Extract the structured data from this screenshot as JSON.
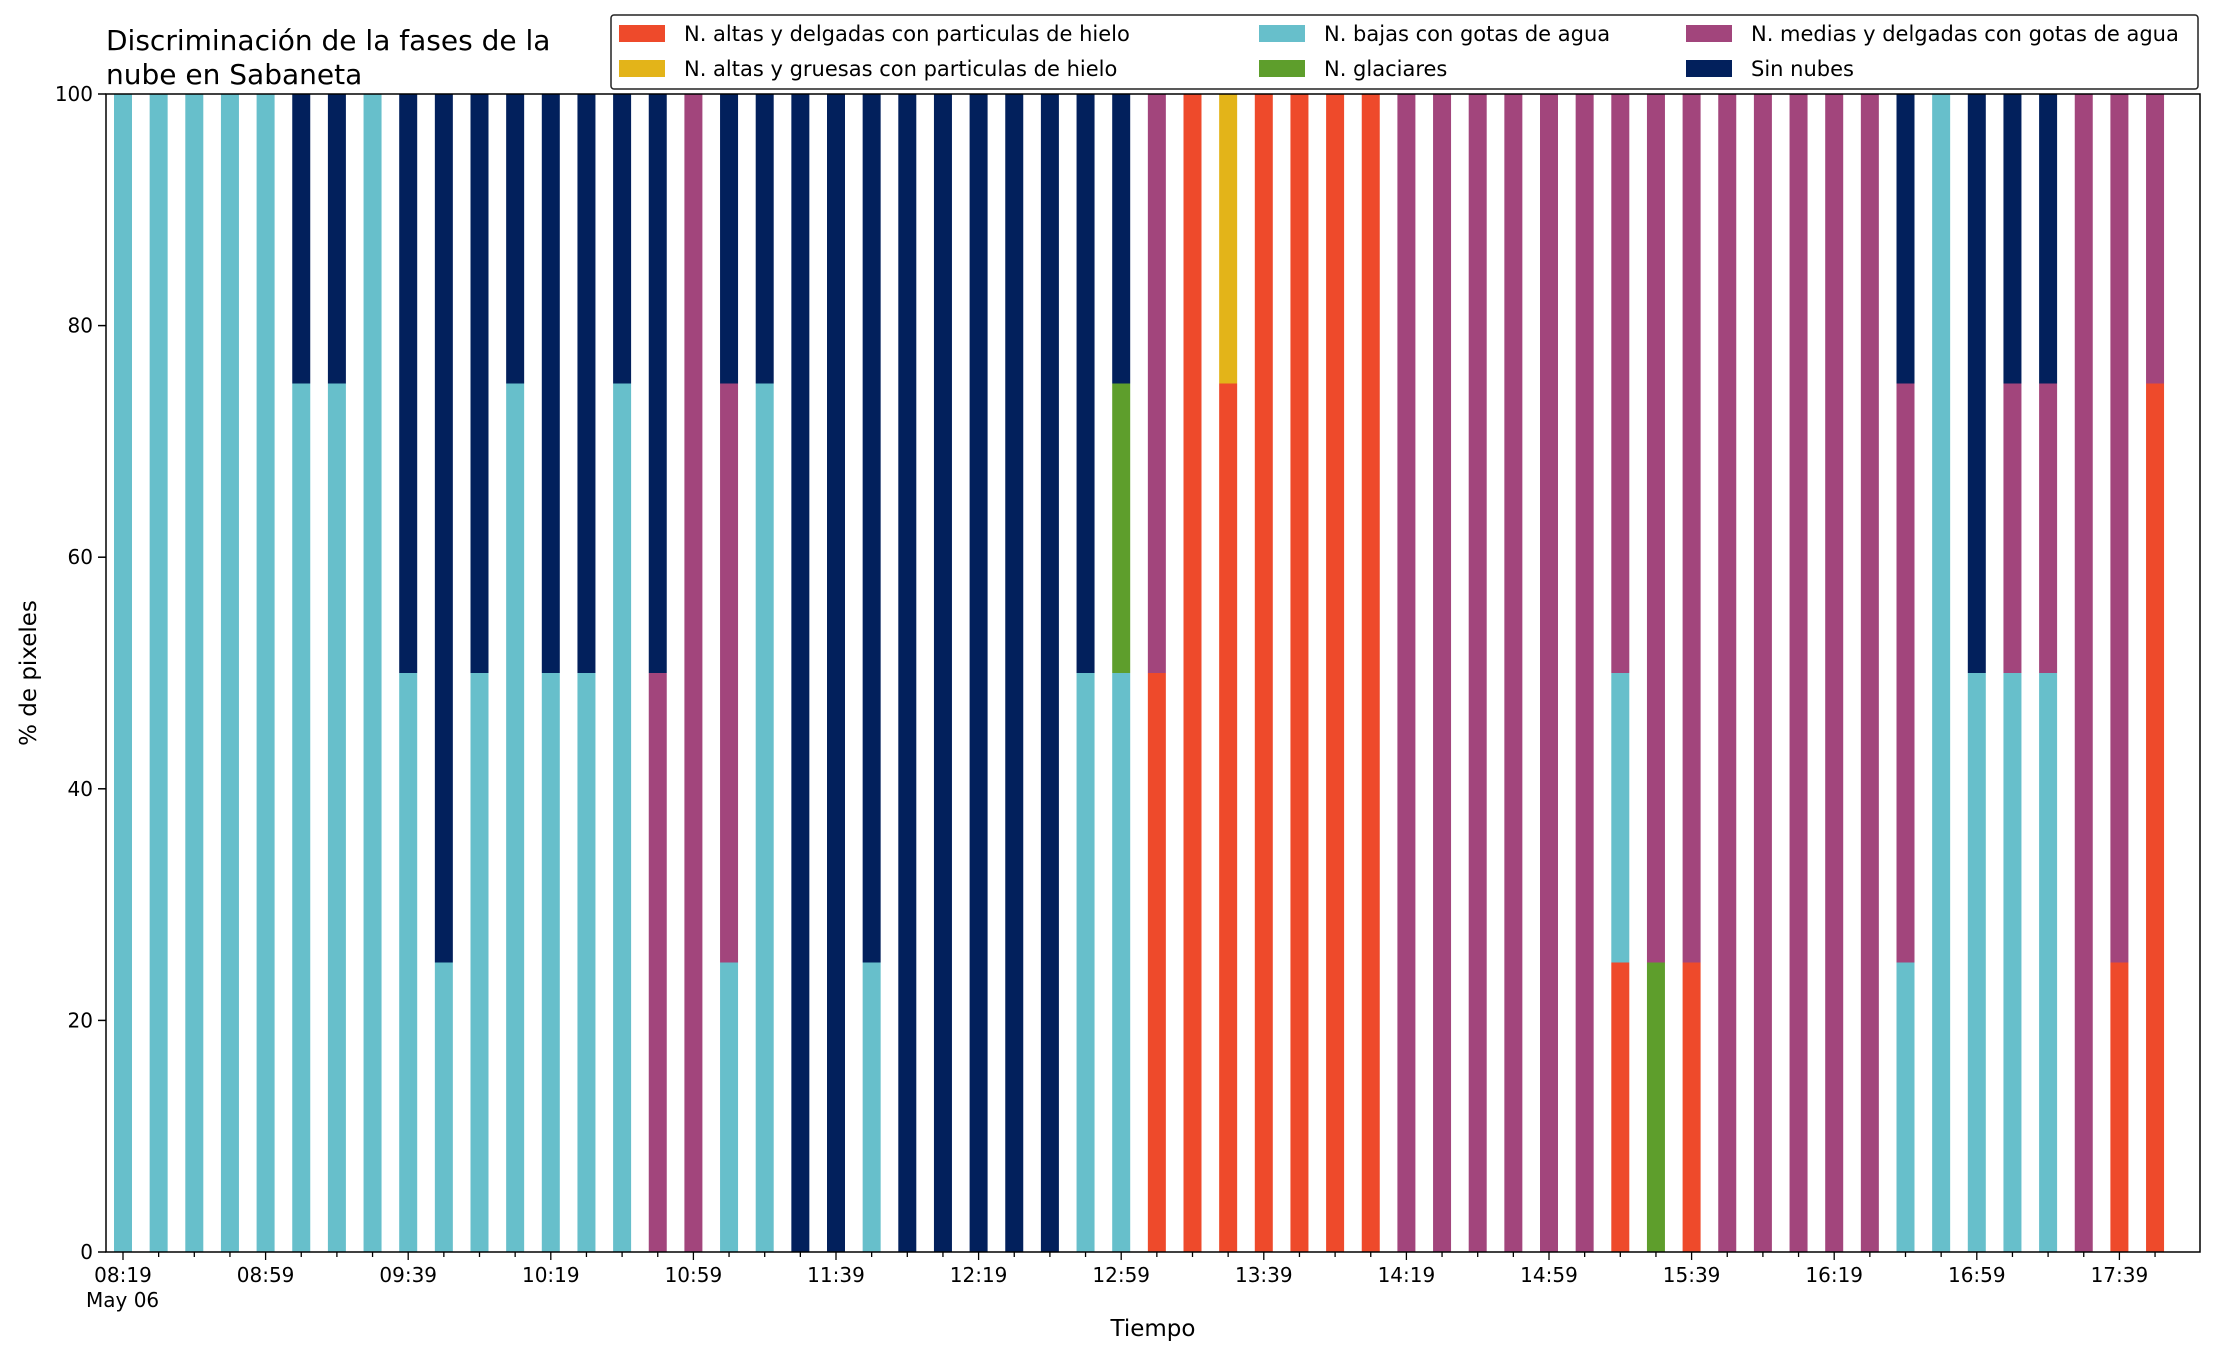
{
  "chart_data": {
    "type": "bar",
    "stacked": true,
    "title": "Discriminación de la fases de la nube en Sabaneta",
    "title_lines": [
      "Discriminación de la fases de la",
      "nube en Sabaneta"
    ],
    "xlabel": "Tiempo",
    "ylabel": "% de pixeles",
    "ylim": [
      0,
      100
    ],
    "yticks": [
      0,
      20,
      40,
      60,
      80,
      100
    ],
    "grid": false,
    "legend_position": "top-right",
    "x_tick_labels": [
      "08:19",
      "08:59",
      "09:39",
      "10:19",
      "10:59",
      "11:39",
      "12:19",
      "12:59",
      "13:39",
      "14:19",
      "14:59",
      "15:39",
      "16:19",
      "16:59",
      "17:39"
    ],
    "x_date_label": "May 06",
    "categories": [
      "08:19",
      "08:29",
      "08:39",
      "08:49",
      "08:59",
      "09:09",
      "09:19",
      "09:29",
      "09:39",
      "09:49",
      "09:59",
      "10:09",
      "10:19",
      "10:29",
      "10:39",
      "10:49",
      "10:59",
      "11:09",
      "11:19",
      "11:29",
      "11:39",
      "11:49",
      "11:59",
      "12:09",
      "12:19",
      "12:29",
      "12:39",
      "12:49",
      "12:59",
      "13:09",
      "13:19",
      "13:29",
      "13:39",
      "13:49",
      "13:59",
      "14:09",
      "14:19",
      "14:29",
      "14:39",
      "14:49",
      "14:59",
      "15:09",
      "15:19",
      "15:29",
      "15:39",
      "15:49",
      "15:59",
      "16:09",
      "16:19",
      "16:29",
      "16:39",
      "16:49",
      "16:59",
      "17:09",
      "17:19",
      "17:29",
      "17:39",
      "17:49"
    ],
    "series": [
      {
        "name": "N. altas y delgadas con particulas de hielo",
        "color": "#ee4a2b",
        "values": [
          0,
          0,
          0,
          0,
          0,
          0,
          0,
          0,
          0,
          0,
          0,
          0,
          0,
          0,
          0,
          0,
          0,
          0,
          0,
          0,
          0,
          0,
          0,
          0,
          0,
          0,
          0,
          0,
          0,
          50,
          100,
          75,
          100,
          100,
          100,
          100,
          0,
          0,
          0,
          0,
          0,
          0,
          25,
          0,
          25,
          0,
          0,
          0,
          0,
          0,
          0,
          0,
          0,
          0,
          0,
          0,
          25,
          75
        ]
      },
      {
        "name": "N. altas y gruesas con particulas de hielo",
        "color": "#e3b419",
        "values": [
          0,
          0,
          0,
          0,
          0,
          0,
          0,
          0,
          0,
          0,
          0,
          0,
          0,
          0,
          0,
          0,
          0,
          0,
          0,
          0,
          0,
          0,
          0,
          0,
          0,
          0,
          0,
          0,
          0,
          0,
          0,
          25,
          0,
          0,
          0,
          0,
          0,
          0,
          0,
          0,
          0,
          0,
          0,
          0,
          0,
          0,
          0,
          0,
          0,
          0,
          0,
          0,
          0,
          0,
          0,
          0,
          0,
          0
        ]
      },
      {
        "name": "N. bajas con gotas de agua",
        "color": "#67bfcb",
        "values": [
          100,
          100,
          100,
          100,
          100,
          75,
          75,
          100,
          50,
          25,
          50,
          75,
          50,
          50,
          75,
          0,
          0,
          25,
          75,
          0,
          0,
          25,
          0,
          0,
          0,
          0,
          0,
          50,
          50,
          0,
          0,
          0,
          0,
          0,
          0,
          0,
          0,
          0,
          0,
          0,
          0,
          0,
          25,
          0,
          0,
          0,
          0,
          0,
          0,
          0,
          25,
          100,
          50,
          50,
          50,
          0,
          0,
          0
        ]
      },
      {
        "name": "N. glaciares",
        "color": "#5e9e2c",
        "values": [
          0,
          0,
          0,
          0,
          0,
          0,
          0,
          0,
          0,
          0,
          0,
          0,
          0,
          0,
          0,
          0,
          0,
          0,
          0,
          0,
          0,
          0,
          0,
          0,
          0,
          0,
          0,
          0,
          25,
          0,
          0,
          0,
          0,
          0,
          0,
          0,
          0,
          0,
          0,
          0,
          0,
          0,
          0,
          25,
          0,
          0,
          0,
          0,
          0,
          0,
          0,
          0,
          0,
          0,
          0,
          0,
          0,
          0
        ]
      },
      {
        "name": "N. medias y delgadas con gotas de agua",
        "color": "#a2457c",
        "values": [
          0,
          0,
          0,
          0,
          0,
          0,
          0,
          0,
          0,
          0,
          0,
          0,
          0,
          0,
          0,
          50,
          100,
          50,
          0,
          0,
          0,
          0,
          0,
          0,
          0,
          0,
          0,
          0,
          0,
          50,
          0,
          0,
          0,
          0,
          0,
          0,
          100,
          100,
          100,
          100,
          100,
          100,
          50,
          75,
          75,
          100,
          100,
          100,
          100,
          100,
          50,
          0,
          0,
          25,
          25,
          100,
          75,
          25
        ]
      },
      {
        "name": "Sin nubes",
        "color": "#02205c",
        "values": [
          0,
          0,
          0,
          0,
          0,
          25,
          25,
          0,
          50,
          75,
          50,
          25,
          50,
          50,
          25,
          50,
          0,
          25,
          25,
          100,
          100,
          75,
          100,
          100,
          100,
          100,
          100,
          50,
          25,
          0,
          0,
          0,
          0,
          0,
          0,
          0,
          0,
          0,
          0,
          0,
          0,
          0,
          0,
          0,
          0,
          0,
          0,
          0,
          0,
          0,
          25,
          0,
          50,
          25,
          25,
          0,
          0,
          0
        ]
      }
    ]
  }
}
